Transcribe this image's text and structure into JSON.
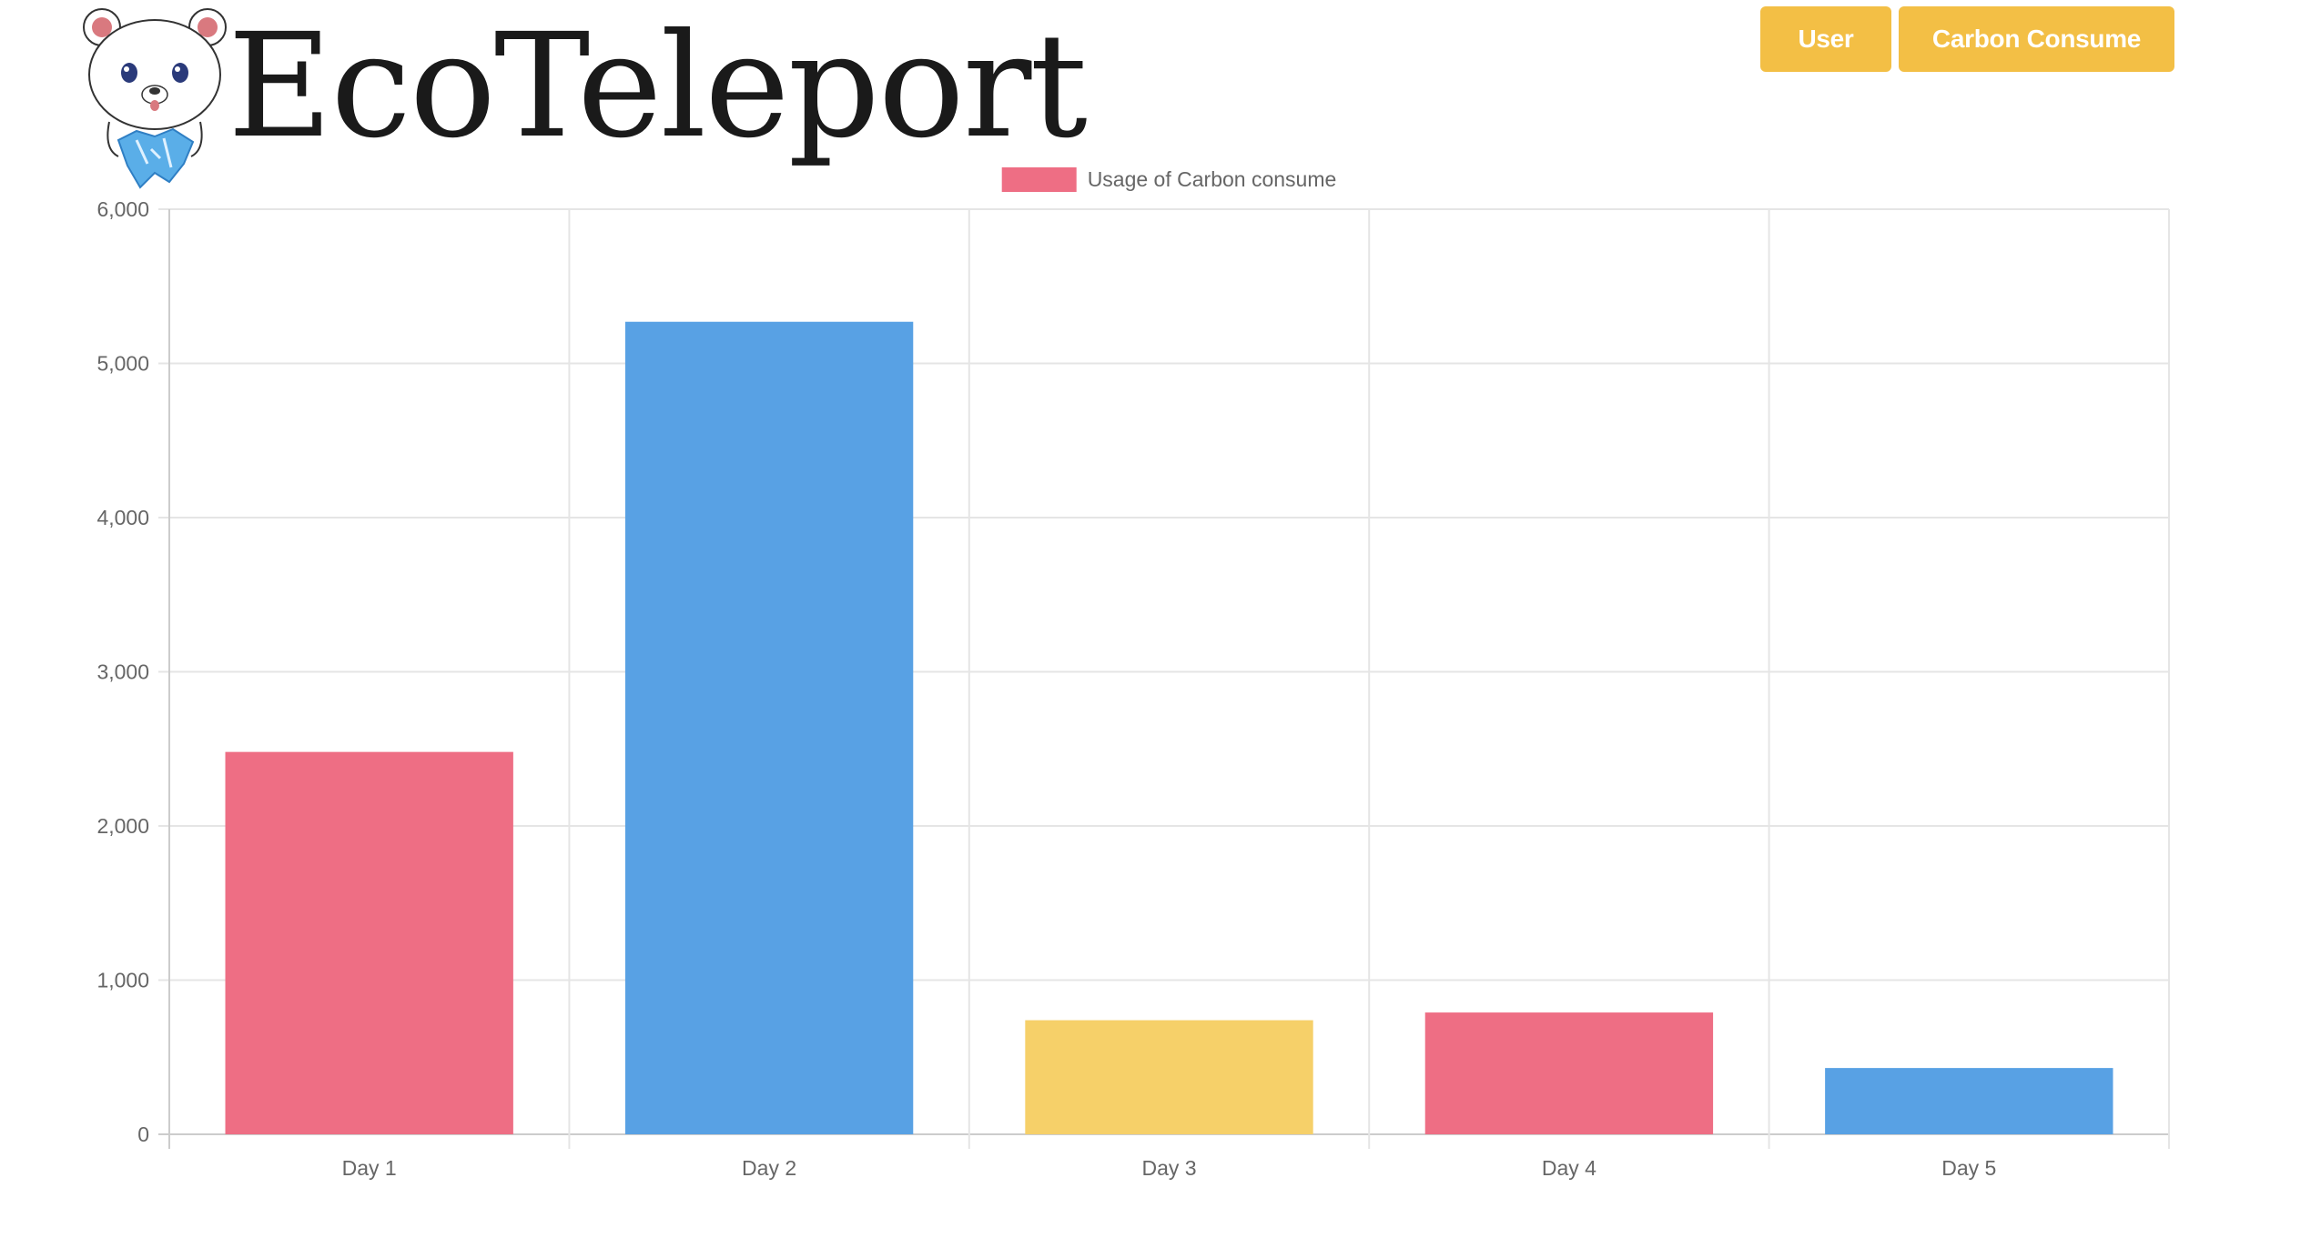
{
  "brand": {
    "name": "EcoTeleport"
  },
  "nav": {
    "user_label": "User",
    "carbon_label": "Carbon Consume"
  },
  "colors": {
    "button": "#f3bf45",
    "red": "#ee6e84",
    "blue": "#58a1e4",
    "yellow": "#f6d069",
    "grid": "#e5e5e5",
    "text": "#666666"
  },
  "chart_data": {
    "type": "bar",
    "categories": [
      "Day 1",
      "Day 2",
      "Day 3",
      "Day 4",
      "Day 5"
    ],
    "series": [
      {
        "name": "Usage of Carbon consume",
        "values": [
          2480,
          5270,
          740,
          790,
          430
        ],
        "colors": [
          "#ee6e84",
          "#58a1e4",
          "#f6d069",
          "#ee6e84",
          "#58a1e4"
        ]
      }
    ],
    "ylim": [
      0,
      6000
    ],
    "yticks": [
      0,
      1000,
      2000,
      3000,
      4000,
      5000,
      6000
    ],
    "ytick_labels": [
      "0",
      "1,000",
      "2,000",
      "3,000",
      "4,000",
      "5,000",
      "6,000"
    ],
    "grid": true,
    "legend_position": "top-center",
    "legend_swatch_color": "#ee6e84",
    "title": "",
    "xlabel": "",
    "ylabel": ""
  }
}
